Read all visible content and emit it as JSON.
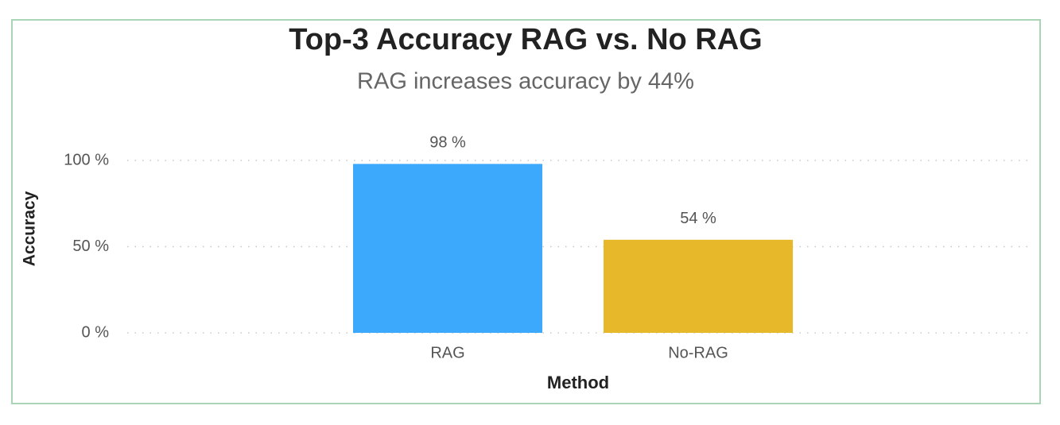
{
  "chart_data": {
    "type": "bar",
    "title": "Top-3 Accuracy RAG vs. No RAG",
    "subtitle": "RAG increases accuracy by 44%",
    "x_label": "Method",
    "y_label": "Accuracy",
    "categories": [
      "RAG",
      "No-RAG"
    ],
    "values": [
      98,
      54
    ],
    "value_labels": [
      "98 %",
      "54 %"
    ],
    "colors": [
      "#3da9fc",
      "#e6b82a"
    ],
    "ylim": [
      0,
      100
    ],
    "yticks": [
      {
        "value": 0,
        "label": "0 %"
      },
      {
        "value": 50,
        "label": "50 %"
      },
      {
        "value": 100,
        "label": "100 %"
      }
    ],
    "grid": true
  }
}
